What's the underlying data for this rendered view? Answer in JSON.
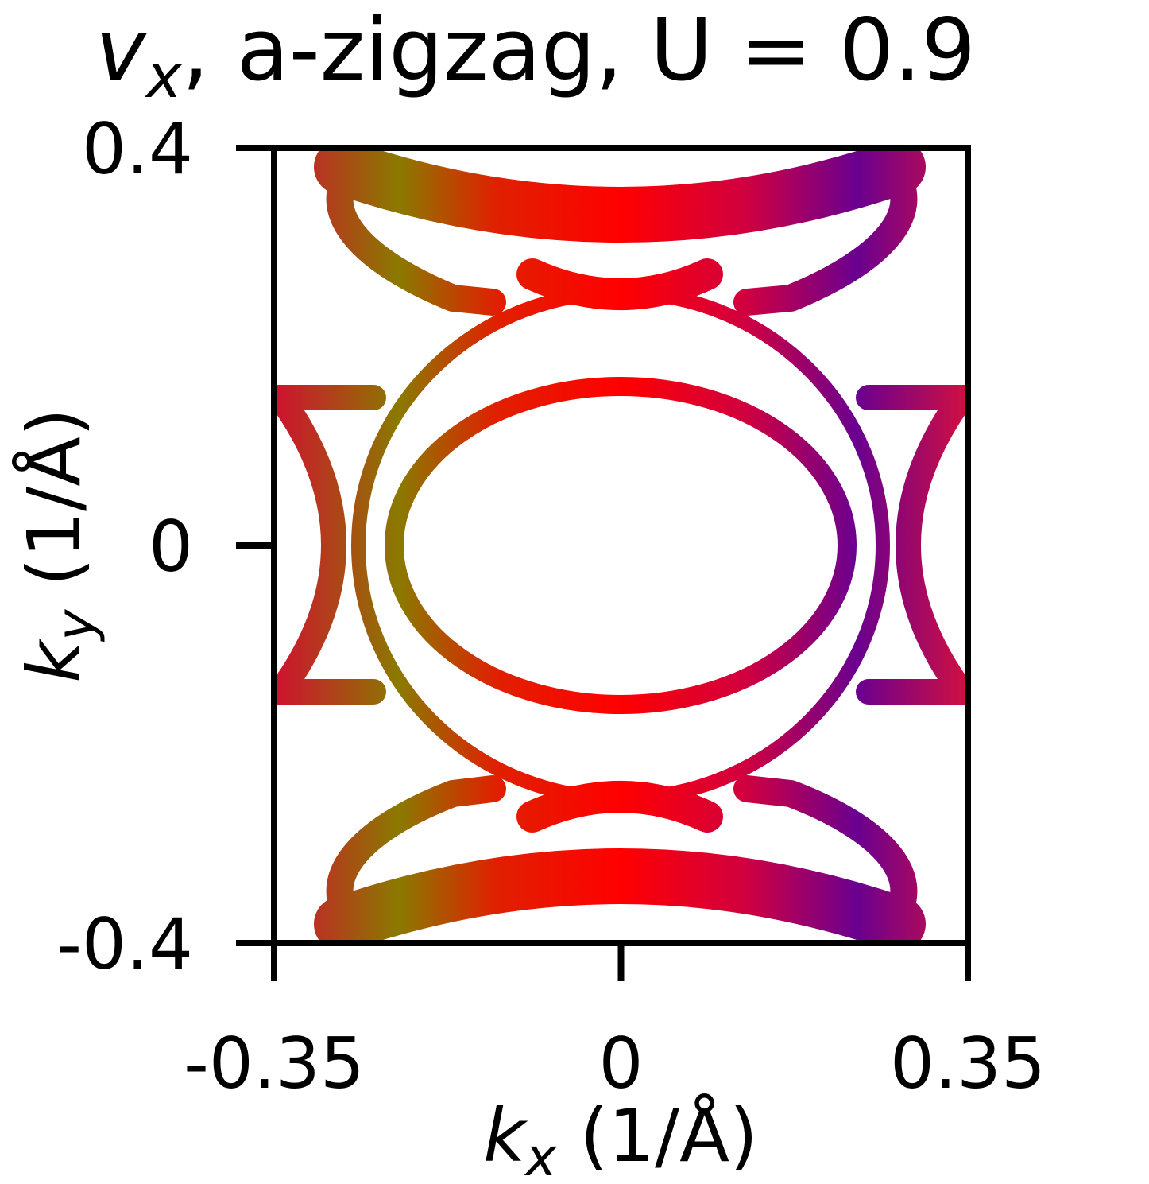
{
  "chart_data": {
    "type": "fermi-surface",
    "title": {
      "symbol": "v",
      "subscript": "x",
      "text": ", a-zigzag, U = 0.9"
    },
    "xlabel": {
      "symbol": "k",
      "subscript": "x",
      "text": " (1/Å)"
    },
    "ylabel": {
      "symbol": "k",
      "subscript": "y",
      "text": " (1/Å)"
    },
    "xlim": [
      -0.35,
      0.35
    ],
    "ylim": [
      -0.4,
      0.4
    ],
    "xticks": [
      -0.35,
      0,
      0.35
    ],
    "yticks": [
      -0.4,
      0,
      0.4
    ]
  }
}
